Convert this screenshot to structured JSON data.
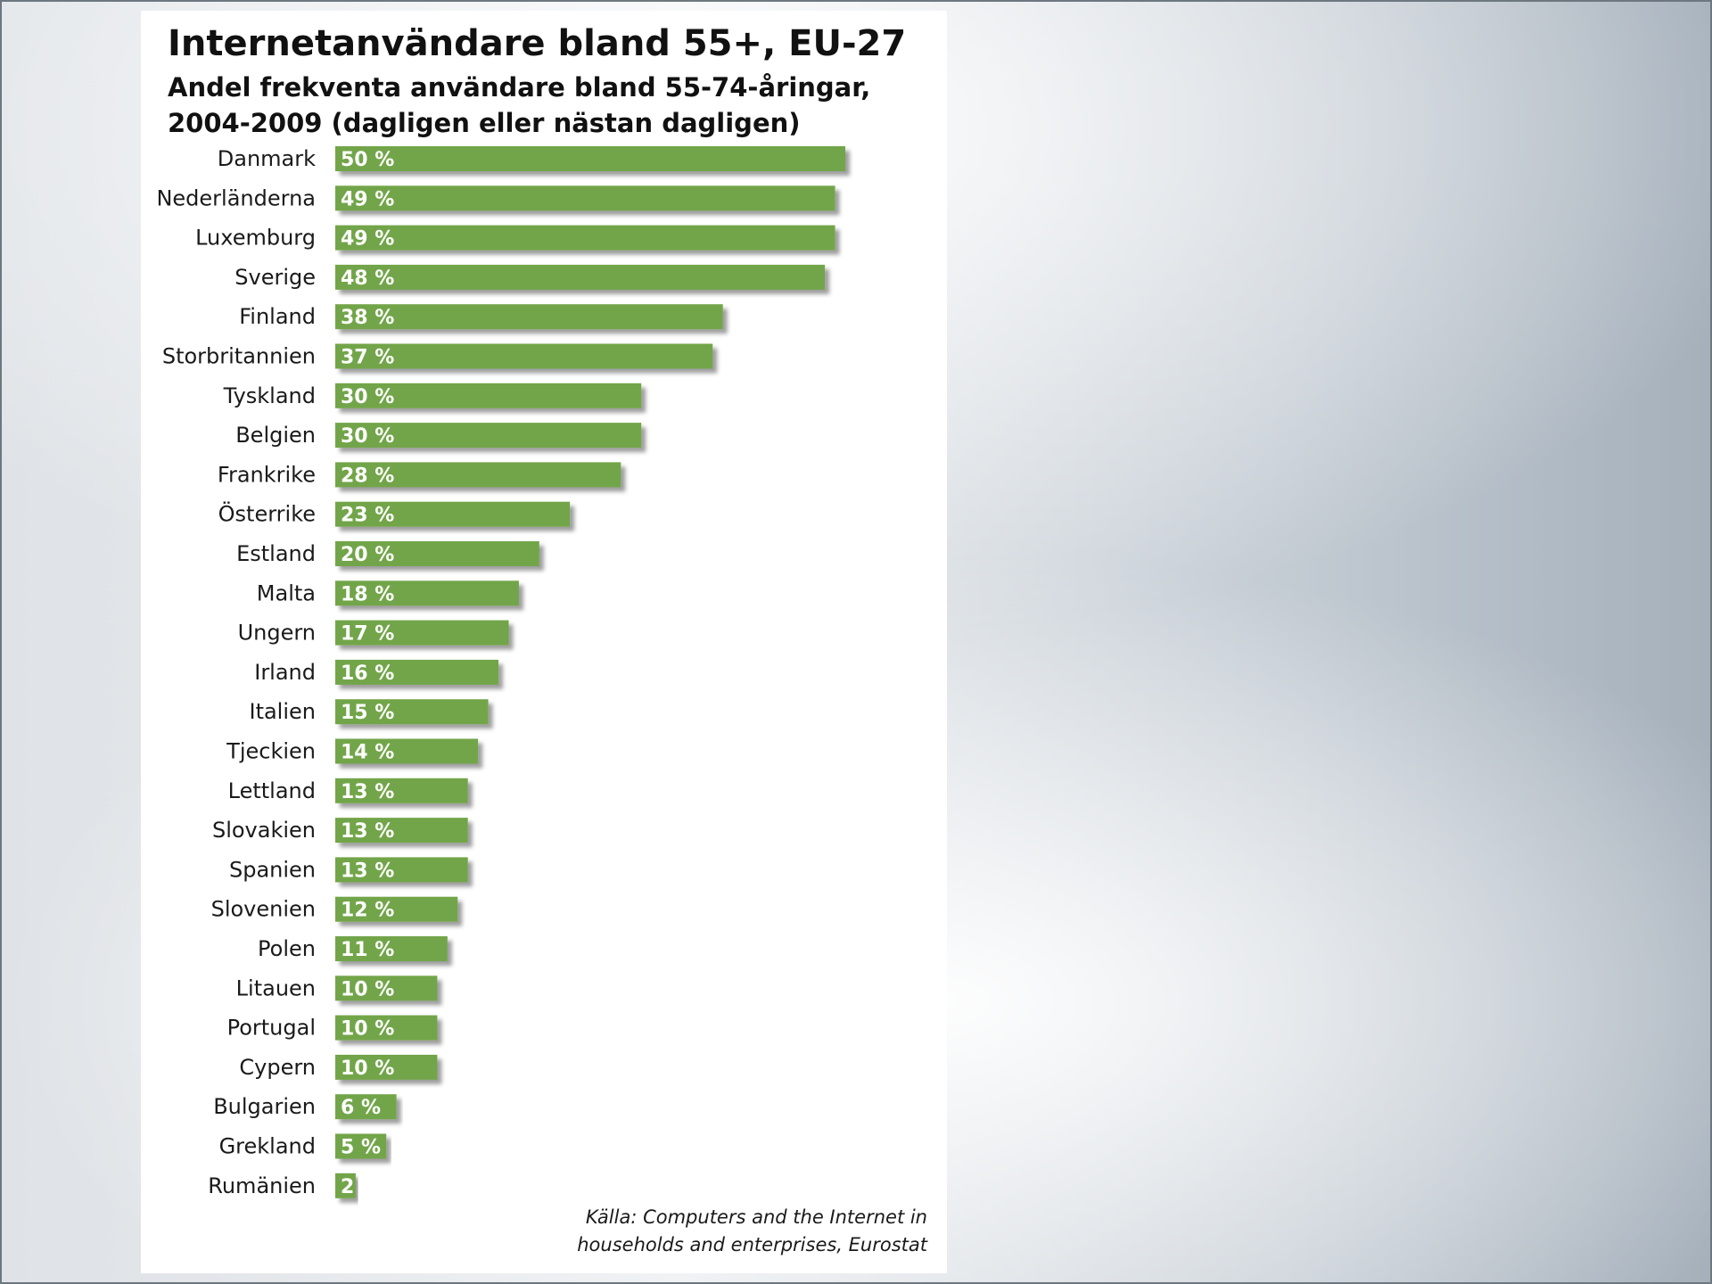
{
  "chart_data": {
    "type": "bar",
    "orientation": "horizontal",
    "title": "Internetanvändare bland 55+, EU-27",
    "subtitle": "Andel frekventa användare bland 55-74-åringar, 2004-2009 (dagligen eller nästan dagligen)",
    "categories": [
      "Danmark",
      "Nederländerna",
      "Luxemburg",
      "Sverige",
      "Finland",
      "Storbritannien",
      "Tyskland",
      "Belgien",
      "Frankrike",
      "Österrike",
      "Estland",
      "Malta",
      "Ungern",
      "Irland",
      "Italien",
      "Tjeckien",
      "Lettland",
      "Slovakien",
      "Spanien",
      "Slovenien",
      "Polen",
      "Litauen",
      "Portugal",
      "Cypern",
      "Bulgarien",
      "Grekland",
      "Rumänien"
    ],
    "values": [
      50,
      49,
      49,
      48,
      38,
      37,
      30,
      30,
      28,
      23,
      20,
      18,
      17,
      16,
      15,
      14,
      13,
      13,
      13,
      12,
      11,
      10,
      10,
      10,
      6,
      5,
      2
    ],
    "value_labels": [
      "50 %",
      "49 %",
      "49 %",
      "48 %",
      "38 %",
      "37 %",
      "30 %",
      "30 %",
      "28 %",
      "23 %",
      "20 %",
      "18 %",
      "17 %",
      "16 %",
      "15 %",
      "14 %",
      "13 %",
      "13 %",
      "13 %",
      "12 %",
      "11 %",
      "10 %",
      "10 %",
      "10 %",
      "6 %",
      "5 %",
      "2 %"
    ],
    "xlim": [
      0,
      50
    ],
    "grid": false,
    "legend": "none",
    "bar_color": "#72a548",
    "source": "Källa: Computers and the Internet in households and enterprises, Eurostat"
  }
}
